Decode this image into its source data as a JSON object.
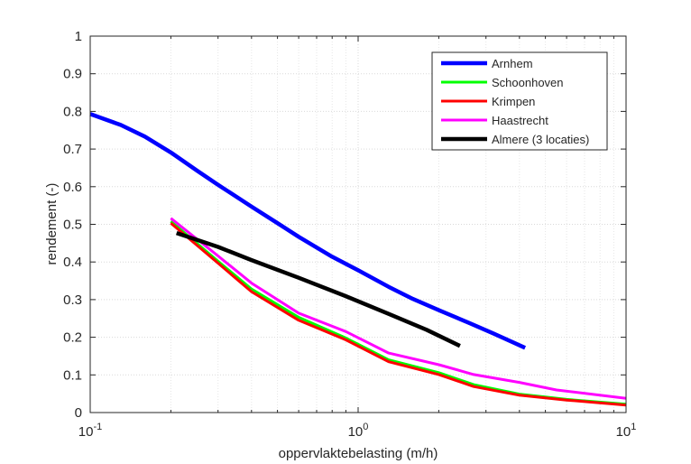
{
  "chart_data": {
    "type": "line",
    "xlabel": "oppervlaktebelasting (m/h)",
    "ylabel": "rendement (-)",
    "xscale": "log",
    "xlim": [
      0.1,
      10
    ],
    "ylim": [
      0,
      1
    ],
    "x_ticks": [
      {
        "value": 0.1,
        "base": "10",
        "exp": "-1"
      },
      {
        "value": 1,
        "base": "10",
        "exp": "0"
      },
      {
        "value": 10,
        "base": "10",
        "exp": "1"
      }
    ],
    "y_ticks": [
      {
        "value": 0,
        "label": "0"
      },
      {
        "value": 0.1,
        "label": "0.1"
      },
      {
        "value": 0.2,
        "label": "0.2"
      },
      {
        "value": 0.3,
        "label": "0.3"
      },
      {
        "value": 0.4,
        "label": "0.4"
      },
      {
        "value": 0.5,
        "label": "0.5"
      },
      {
        "value": 0.6,
        "label": "0.6"
      },
      {
        "value": 0.7,
        "label": "0.7"
      },
      {
        "value": 0.8,
        "label": "0.8"
      },
      {
        "value": 0.9,
        "label": "0.9"
      },
      {
        "value": 1,
        "label": "1"
      }
    ],
    "grid": true,
    "minor_grid": true,
    "legend_position": "top-right",
    "series": [
      {
        "name": "Arnhem",
        "color": "#0000ff",
        "points": [
          [
            0.1,
            0.793
          ],
          [
            0.13,
            0.764
          ],
          [
            0.16,
            0.733
          ],
          [
            0.2,
            0.691
          ],
          [
            0.25,
            0.643
          ],
          [
            0.3,
            0.605
          ],
          [
            0.4,
            0.547
          ],
          [
            0.5,
            0.503
          ],
          [
            0.6,
            0.467
          ],
          [
            0.8,
            0.414
          ],
          [
            1.0,
            0.378
          ],
          [
            1.3,
            0.334
          ],
          [
            1.6,
            0.302
          ],
          [
            2.0,
            0.272
          ],
          [
            2.6,
            0.238
          ],
          [
            3.2,
            0.21
          ],
          [
            4.2,
            0.172
          ]
        ]
      },
      {
        "name": "Schoonhoven",
        "color": "#00ff00",
        "points": [
          [
            0.2,
            0.508
          ],
          [
            0.3,
            0.402
          ],
          [
            0.4,
            0.328
          ],
          [
            0.6,
            0.253
          ],
          [
            0.9,
            0.198
          ],
          [
            1.3,
            0.14
          ],
          [
            2.0,
            0.106
          ],
          [
            2.7,
            0.074
          ],
          [
            4.0,
            0.049
          ],
          [
            6.0,
            0.035
          ],
          [
            10,
            0.022
          ]
        ]
      },
      {
        "name": "Krimpen",
        "color": "#ff0000",
        "points": [
          [
            0.2,
            0.503
          ],
          [
            0.3,
            0.397
          ],
          [
            0.4,
            0.321
          ],
          [
            0.6,
            0.245
          ],
          [
            0.9,
            0.193
          ],
          [
            1.3,
            0.135
          ],
          [
            2.0,
            0.101
          ],
          [
            2.7,
            0.069
          ],
          [
            4.0,
            0.046
          ],
          [
            6.0,
            0.033
          ],
          [
            10,
            0.02
          ]
        ]
      },
      {
        "name": "Haastrecht",
        "color": "#ff00ff",
        "points": [
          [
            0.2,
            0.516
          ],
          [
            0.3,
            0.416
          ],
          [
            0.4,
            0.344
          ],
          [
            0.6,
            0.264
          ],
          [
            0.9,
            0.215
          ],
          [
            1.3,
            0.158
          ],
          [
            2.0,
            0.127
          ],
          [
            2.7,
            0.101
          ],
          [
            4.0,
            0.08
          ],
          [
            5.5,
            0.06
          ],
          [
            10,
            0.038
          ]
        ]
      },
      {
        "name": "Almere (3 locaties)",
        "color": "#000000",
        "points": [
          [
            0.21,
            0.477
          ],
          [
            0.3,
            0.44
          ],
          [
            0.4,
            0.405
          ],
          [
            0.6,
            0.358
          ],
          [
            0.9,
            0.309
          ],
          [
            1.3,
            0.262
          ],
          [
            1.8,
            0.22
          ],
          [
            2.4,
            0.177
          ]
        ]
      }
    ]
  }
}
